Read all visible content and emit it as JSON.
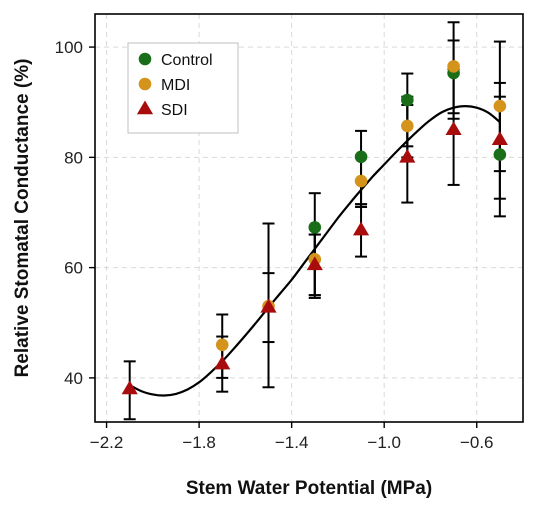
{
  "chart_data": {
    "type": "scatter",
    "xlabel": "Stem Water Potential (MPa)",
    "ylabel": "Relative Stomatal Conductance (%)",
    "xlim": [
      -2.25,
      -0.4
    ],
    "ylim": [
      32,
      106
    ],
    "x_ticks": [
      -2.2,
      -1.8,
      -1.4,
      -1.0,
      -0.6
    ],
    "x_tick_labels": [
      "−2.2",
      "−1.8",
      "−1.4",
      "−1.0",
      "−0.6"
    ],
    "y_ticks": [
      40,
      60,
      80,
      100
    ],
    "y_tick_labels": [
      "40",
      "60",
      "80",
      "100"
    ],
    "grid": true,
    "legend_position": "top-left",
    "series": [
      {
        "name": "Control",
        "marker": "circle",
        "color": "#1a6e1a",
        "points": [
          {
            "x": -1.3,
            "y": 67.3,
            "err_low": 55,
            "err_high": 73.5
          },
          {
            "x": -1.1,
            "y": 80.1,
            "err_low": 71.5,
            "err_high": 84.8
          },
          {
            "x": -0.9,
            "y": 90.4,
            "err_low": 82,
            "err_high": 95.2
          },
          {
            "x": -0.7,
            "y": 95.3,
            "err_low": 87,
            "err_high": 101.2
          },
          {
            "x": -0.5,
            "y": 80.5,
            "err_low": 72.5,
            "err_high": 91
          }
        ]
      },
      {
        "name": "MDI",
        "marker": "circle",
        "color": "#d4931a",
        "points": [
          {
            "x": -1.7,
            "y": 46.0,
            "err_low": 40,
            "err_high": 51.5
          },
          {
            "x": -1.5,
            "y": 53.0,
            "err_low": 38.3,
            "err_high": 68
          },
          {
            "x": -1.3,
            "y": 61.5,
            "err_low": 54.5,
            "err_high": 66
          },
          {
            "x": -1.1,
            "y": 75.7,
            "err_low": 71,
            "err_high": 80.2
          },
          {
            "x": -0.9,
            "y": 85.7,
            "err_low": 80,
            "err_high": 91
          },
          {
            "x": -0.7,
            "y": 96.5,
            "err_low": 88,
            "err_high": 104.5
          },
          {
            "x": -0.5,
            "y": 89.3,
            "err_low": 77.5,
            "err_high": 101
          }
        ]
      },
      {
        "name": "SDI",
        "marker": "triangle",
        "color": "#a80c0c",
        "points": [
          {
            "x": -2.1,
            "y": 38.0,
            "err_low": 32.5,
            "err_high": 43
          },
          {
            "x": -1.7,
            "y": 42.5,
            "err_low": 37.5,
            "err_high": 47.5
          },
          {
            "x": -1.5,
            "y": 52.8,
            "err_low": 46.5,
            "err_high": 59
          },
          {
            "x": -1.3,
            "y": 60.5,
            "err_low": 55,
            "err_high": 66
          },
          {
            "x": -1.1,
            "y": 66.8,
            "err_low": 62,
            "err_high": 71.5
          },
          {
            "x": -0.9,
            "y": 80.0,
            "err_low": 71.8,
            "err_high": 89.5
          },
          {
            "x": -0.7,
            "y": 85.0,
            "err_low": 75,
            "err_high": 96
          },
          {
            "x": -0.5,
            "y": 83.2,
            "err_low": 69.3,
            "err_high": 93.5
          }
        ]
      }
    ],
    "fit_curve": {
      "color": "#000000",
      "points": [
        [
          -2.1,
          38.7
        ],
        [
          -2.05,
          37.6
        ],
        [
          -2.0,
          37.0
        ],
        [
          -1.95,
          36.8
        ],
        [
          -1.9,
          37.1
        ],
        [
          -1.85,
          37.9
        ],
        [
          -1.8,
          39.2
        ],
        [
          -1.75,
          41.0
        ],
        [
          -1.7,
          43.0
        ],
        [
          -1.65,
          45.3
        ],
        [
          -1.6,
          47.7
        ],
        [
          -1.55,
          50.2
        ],
        [
          -1.5,
          52.8
        ],
        [
          -1.45,
          55.3
        ],
        [
          -1.4,
          57.8
        ],
        [
          -1.35,
          60.6
        ],
        [
          -1.3,
          63.4
        ],
        [
          -1.25,
          66.2
        ],
        [
          -1.2,
          69.0
        ],
        [
          -1.15,
          71.6
        ],
        [
          -1.1,
          74.1
        ],
        [
          -1.05,
          76.5
        ],
        [
          -1.0,
          78.7
        ],
        [
          -0.95,
          80.9
        ],
        [
          -0.9,
          83.0
        ],
        [
          -0.85,
          85.0
        ],
        [
          -0.8,
          86.8
        ],
        [
          -0.75,
          88.2
        ],
        [
          -0.7,
          89.0
        ],
        [
          -0.65,
          89.3
        ],
        [
          -0.6,
          89.0
        ],
        [
          -0.55,
          88.1
        ],
        [
          -0.5,
          86.4
        ]
      ]
    }
  }
}
